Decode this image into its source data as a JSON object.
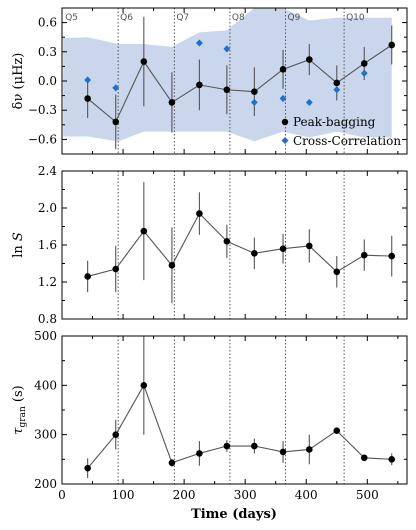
{
  "chart_data": [
    {
      "type": "line",
      "ylabel": "δν (μHz)",
      "ylim": [
        -0.75,
        0.75
      ],
      "yticks": [
        -0.6,
        -0.3,
        0.0,
        0.3,
        0.6
      ],
      "ytick_labels": [
        "−0.6",
        "−0.3",
        "0.0",
        "0.3",
        "0.6"
      ],
      "quarter_labels": [
        "Q5",
        "Q6",
        "Q7",
        "Q8",
        "Q9",
        "Q10"
      ],
      "quarter_label_x": [
        2,
        92,
        184,
        275,
        366,
        462
      ],
      "legend": {
        "placement": "bottom-right",
        "entries": [
          "Peak-bagging",
          "Cross-Correlation"
        ]
      },
      "band": {
        "x": [
          2,
          42,
          92,
          134,
          180,
          225,
          270,
          315,
          362,
          405,
          450,
          495,
          540
        ],
        "upper": [
          0.44,
          0.45,
          0.38,
          0.38,
          0.35,
          0.5,
          0.52,
          0.78,
          0.78,
          0.62,
          0.65,
          0.65,
          0.65
        ],
        "lower": [
          -0.57,
          -0.57,
          -0.62,
          -0.52,
          -0.52,
          -0.52,
          -0.52,
          -0.62,
          -0.52,
          -0.58,
          -0.52,
          -0.58,
          -0.58
        ]
      },
      "series": [
        {
          "name": "Peak-bagging",
          "x": [
            42,
            88,
            134,
            180,
            225,
            270,
            315,
            362,
            405,
            450,
            495,
            540
          ],
          "y": [
            -0.18,
            -0.42,
            0.2,
            -0.22,
            -0.04,
            -0.09,
            -0.11,
            0.12,
            0.22,
            -0.02,
            0.18,
            0.37
          ],
          "yerr": [
            0.2,
            0.28,
            0.46,
            0.31,
            0.26,
            0.25,
            0.25,
            0.2,
            0.16,
            0.18,
            0.17,
            0.2
          ]
        },
        {
          "name": "Cross-Correlation",
          "x": [
            42,
            88,
            225,
            270,
            315,
            362,
            405,
            450,
            495
          ],
          "y": [
            0.01,
            -0.07,
            0.39,
            0.33,
            -0.22,
            -0.18,
            -0.22,
            -0.09,
            0.08
          ]
        }
      ]
    },
    {
      "type": "line",
      "ylabel": "ln S",
      "ylim": [
        0.8,
        2.4
      ],
      "yticks": [
        0.8,
        1.2,
        1.6,
        2.0,
        2.4
      ],
      "ytick_labels": [
        "0.8",
        "1.2",
        "1.6",
        "2.0",
        "2.4"
      ],
      "series": [
        {
          "x": [
            42,
            88,
            134,
            180,
            225,
            270,
            315,
            362,
            405,
            450,
            495,
            540
          ],
          "y": [
            1.26,
            1.34,
            1.75,
            1.38,
            1.94,
            1.64,
            1.51,
            1.56,
            1.59,
            1.31,
            1.49,
            1.48
          ],
          "yerr": [
            0.17,
            0.25,
            0.53,
            0.41,
            0.23,
            0.18,
            0.17,
            0.16,
            0.18,
            0.17,
            0.17,
            0.22
          ]
        }
      ]
    },
    {
      "type": "line",
      "ylabel": "τgran (s)",
      "xlabel": "Time (days)",
      "ylim": [
        200,
        500
      ],
      "yticks": [
        200,
        300,
        400,
        500
      ],
      "ytick_labels": [
        "200",
        "300",
        "400",
        "500"
      ],
      "xlim": [
        0,
        565
      ],
      "xticks": [
        0,
        100,
        200,
        300,
        400,
        500
      ],
      "xtick_labels": [
        "0",
        "100",
        "200",
        "300",
        "400",
        "500"
      ],
      "series": [
        {
          "x": [
            42,
            88,
            134,
            180,
            225,
            270,
            315,
            362,
            405,
            450,
            495,
            540
          ],
          "y": [
            232,
            300,
            400,
            243,
            262,
            277,
            277,
            265,
            270,
            308,
            253,
            250
          ],
          "yerr": [
            20,
            30,
            100,
            8,
            25,
            12,
            15,
            22,
            30,
            5,
            3,
            12
          ]
        }
      ]
    }
  ],
  "vlines": [
    92,
    184,
    275,
    366,
    462
  ],
  "colors": {
    "band": "#c9d6ec",
    "line": "#555555",
    "marker": "#000000",
    "diamond": "#1f6fd1",
    "vline": "#555555"
  }
}
